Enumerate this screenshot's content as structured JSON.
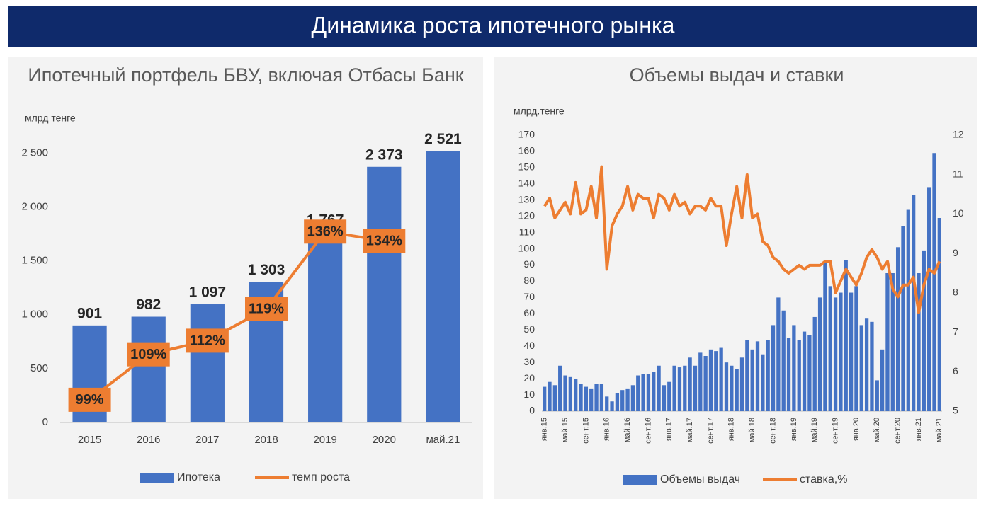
{
  "header": {
    "title": "Динамика роста ипотечного рынка"
  },
  "chart_data": [
    {
      "type": "combo",
      "title": "Ипотечный портфель БВУ, включая Отбасы Банк",
      "y_label": "млрд тенге",
      "categories": [
        "2015",
        "2016",
        "2017",
        "2018",
        "2019",
        "2020",
        "май.21"
      ],
      "series": [
        {
          "name": "Ипотека",
          "type": "bar",
          "color": "#4472c4",
          "values": [
            901,
            982,
            1097,
            1303,
            1767,
            2373,
            2521
          ],
          "value_labels": [
            "901",
            "982",
            "1 097",
            "1 303",
            "1 767",
            "2 373",
            "2 521"
          ]
        },
        {
          "name": "темп роста",
          "type": "line",
          "axis": "y2",
          "color": "#ed7d31",
          "values": [
            99,
            109,
            112,
            119,
            136,
            134,
            null
          ],
          "value_labels": [
            "99%",
            "109%",
            "112%",
            "119%",
            "136%",
            "134%",
            null
          ]
        }
      ],
      "ylim": [
        0,
        2700
      ],
      "yticks": [
        0,
        500,
        {
          "value": 1000,
          "label": "1 000"
        },
        {
          "value": 1500,
          "label": "1 500"
        },
        {
          "value": 2000,
          "label": "2 000"
        },
        {
          "value": 2500,
          "label": "2 500"
        }
      ],
      "y2lim": [
        94,
        158
      ],
      "legend": "bottom"
    },
    {
      "type": "combo",
      "title": "Объемы выдач и ставки",
      "y_label": "млрд.тенге",
      "categories": [
        "янв.15",
        null,
        null,
        null,
        "май.15",
        null,
        null,
        null,
        "сент.15",
        null,
        null,
        null,
        "янв.16",
        null,
        null,
        null,
        "май.16",
        null,
        null,
        null,
        "сент.16",
        null,
        null,
        null,
        "янв.17",
        null,
        null,
        null,
        "май.17",
        null,
        null,
        null,
        "сент.17",
        null,
        null,
        null,
        "янв.18",
        null,
        null,
        null,
        "май.18",
        null,
        null,
        null,
        "сент.18",
        null,
        null,
        null,
        "янв.19",
        null,
        null,
        null,
        "май.19",
        null,
        null,
        null,
        "сент.19",
        null,
        null,
        null,
        "янв.20",
        null,
        null,
        null,
        "май.20",
        null,
        null,
        null,
        "сент.20",
        null,
        null,
        null,
        "янв.21",
        null,
        null,
        null,
        "май.21"
      ],
      "series": [
        {
          "name": "Объемы выдач",
          "type": "bar",
          "color": "#4472c4",
          "values": [
            15,
            18,
            16,
            28,
            22,
            21,
            20,
            17,
            15,
            14,
            17,
            17,
            9,
            6,
            11,
            13,
            14,
            16,
            22,
            23,
            23,
            24,
            28,
            16,
            18,
            28,
            27,
            28,
            33,
            28,
            36,
            34,
            38,
            37,
            39,
            30,
            28,
            26,
            33,
            44,
            38,
            43,
            35,
            44,
            53,
            70,
            62,
            45,
            53,
            44,
            49,
            47,
            58,
            70,
            92,
            77,
            70,
            73,
            93,
            73,
            77,
            53,
            57,
            55,
            19,
            38,
            85,
            85,
            101,
            114,
            124,
            133,
            85,
            99,
            138,
            159,
            119
          ]
        },
        {
          "name": "ставка,%",
          "type": "line",
          "axis": "y2",
          "color": "#ed7d31",
          "values": [
            10.2,
            10.4,
            9.9,
            10.1,
            10.3,
            10.0,
            10.8,
            10.0,
            10.1,
            10.7,
            9.9,
            11.2,
            8.6,
            9.7,
            10.0,
            10.2,
            10.7,
            10.1,
            10.5,
            10.4,
            10.4,
            9.9,
            10.5,
            10.4,
            10.1,
            10.5,
            10.2,
            10.3,
            10.0,
            10.2,
            10.2,
            10.1,
            10.4,
            10.2,
            10.2,
            9.2,
            10.0,
            10.7,
            9.9,
            11.0,
            9.9,
            10.0,
            9.3,
            9.2,
            8.9,
            8.8,
            8.6,
            8.5,
            8.6,
            8.7,
            8.6,
            8.7,
            8.7,
            8.7,
            8.8,
            8.8,
            8.0,
            8.3,
            8.6,
            8.4,
            8.2,
            8.5,
            8.9,
            9.1,
            8.9,
            8.6,
            8.8,
            8.1,
            7.9,
            8.2,
            8.2,
            8.4,
            7.5,
            8.2,
            8.6,
            8.5,
            8.8
          ]
        }
      ],
      "ylim": [
        0,
        170
      ],
      "yticks": [
        0,
        10,
        20,
        30,
        40,
        50,
        60,
        70,
        80,
        90,
        100,
        110,
        120,
        130,
        140,
        150,
        160,
        170
      ],
      "y2lim": [
        5,
        12
      ],
      "y2ticks": [
        5,
        6,
        7,
        8,
        9,
        10,
        11,
        12
      ],
      "legend": "bottom"
    }
  ]
}
